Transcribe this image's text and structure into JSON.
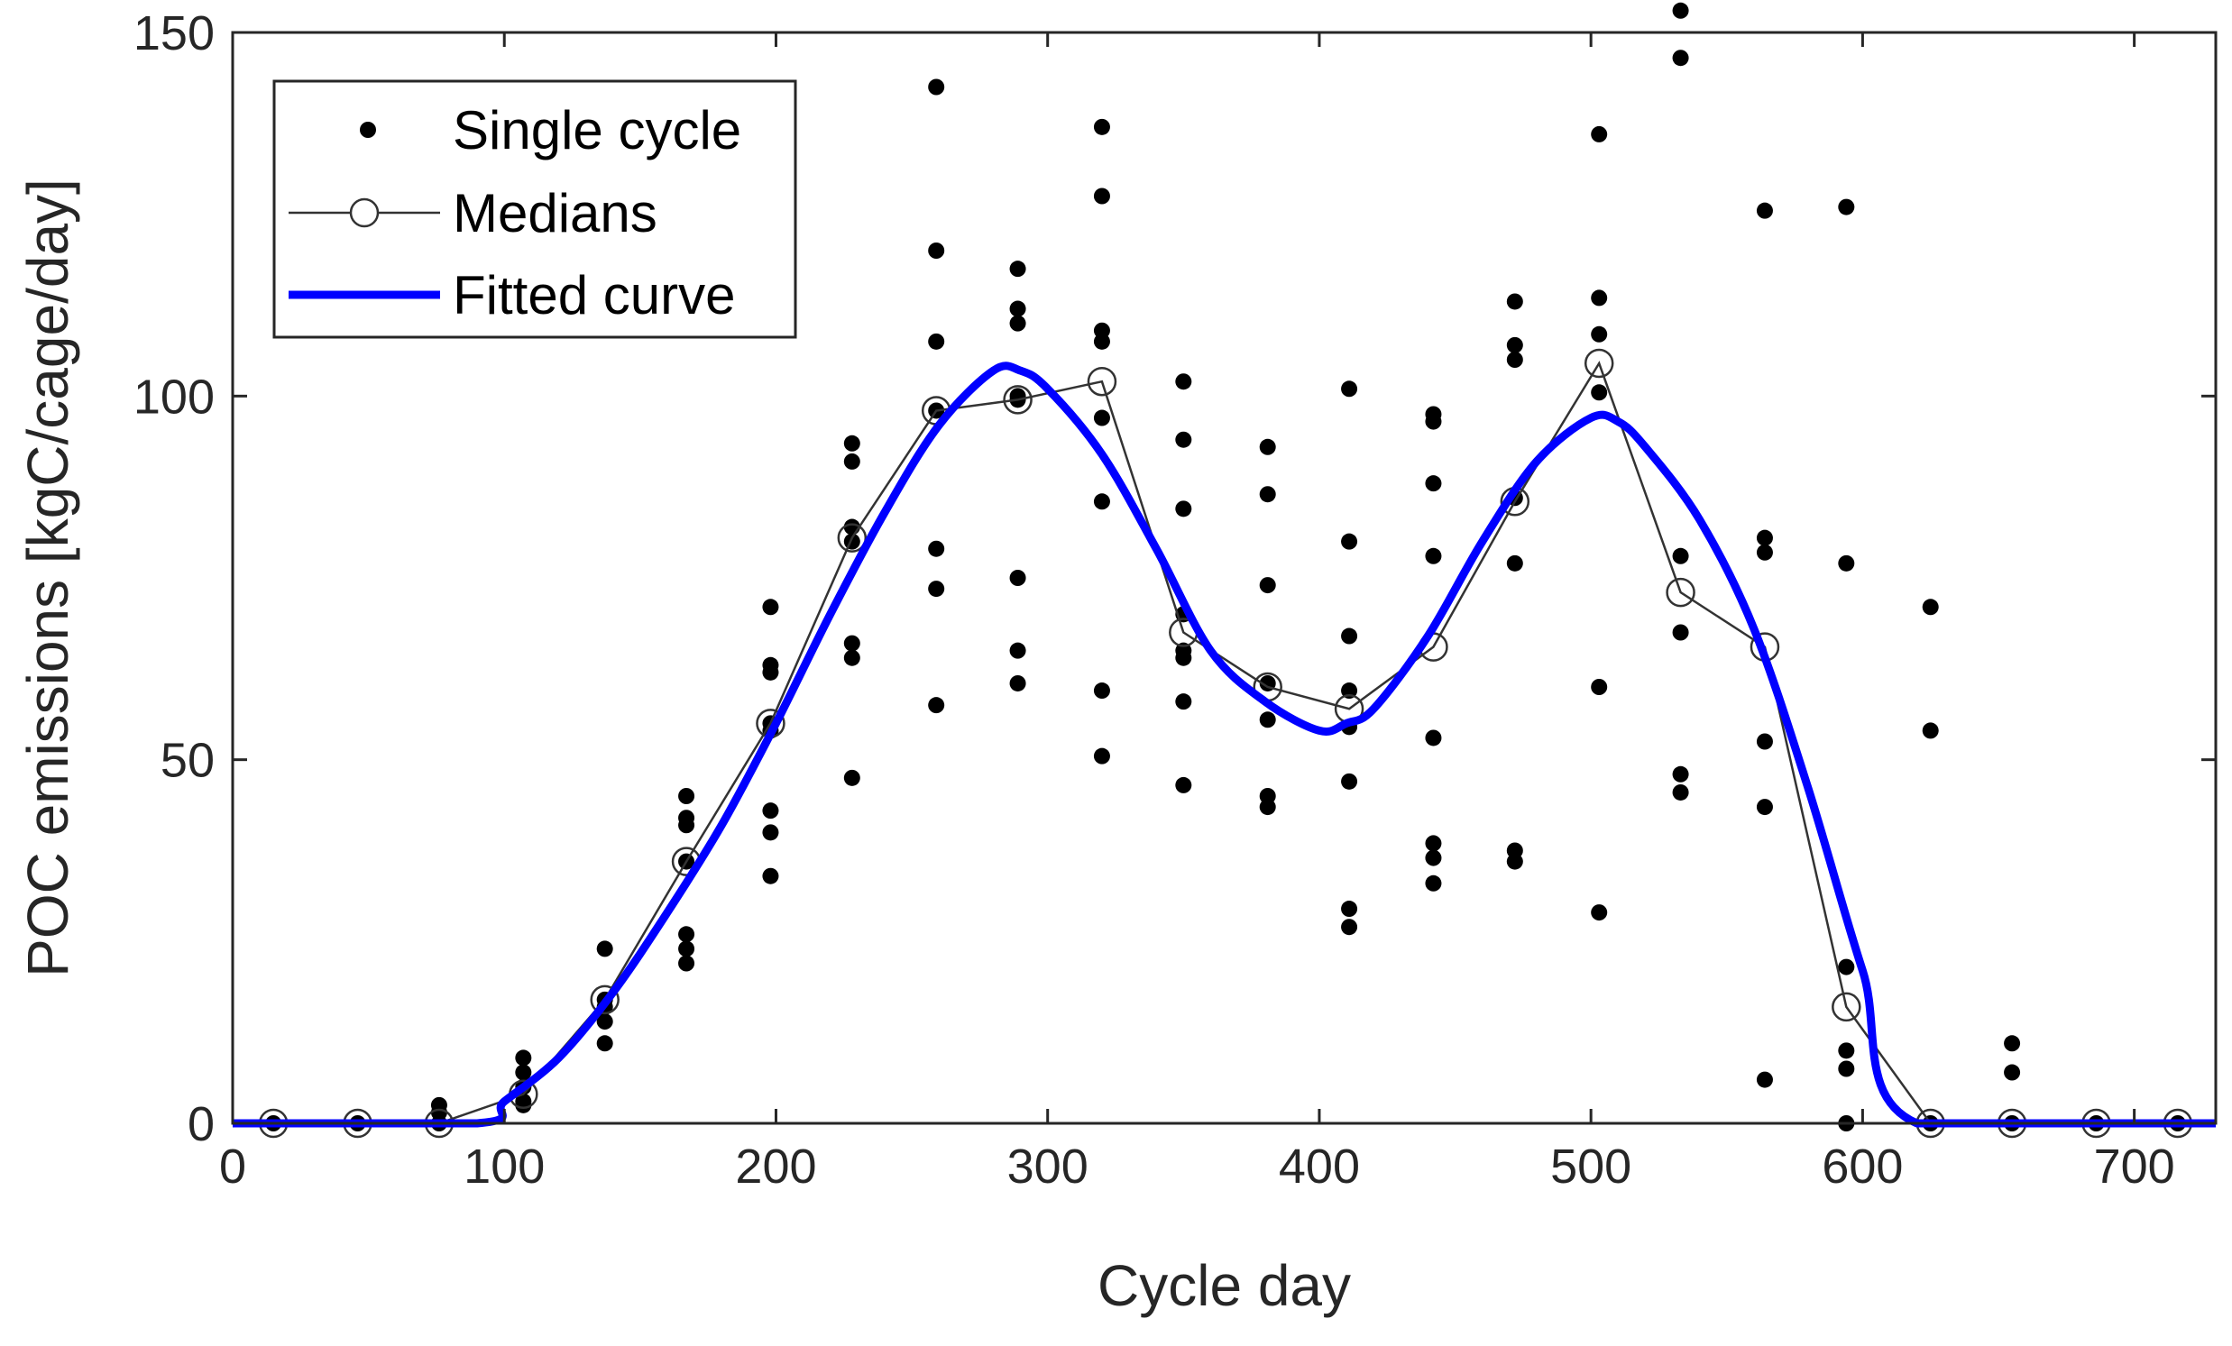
{
  "chart_data": {
    "type": "scatter",
    "xlabel": "Cycle day",
    "ylabel": "POC emissions [kgC/cage/day]",
    "xlim": [
      0,
      730
    ],
    "ylim": [
      0,
      150
    ],
    "xticks": [
      0,
      100,
      200,
      300,
      400,
      500,
      600,
      700
    ],
    "yticks": [
      0,
      50,
      100,
      150
    ],
    "grid": false,
    "legend_position": "top-left",
    "colors": {
      "single_cycle": "#000000",
      "medians": "#333333",
      "fitted_curve": "#0000FF"
    },
    "series": [
      {
        "name": "Single cycle",
        "style": "dots",
        "points": [
          [
            15,
            0
          ],
          [
            46,
            0
          ],
          [
            76,
            0
          ],
          [
            76,
            1.5
          ],
          [
            76,
            2.5
          ],
          [
            107,
            2.5
          ],
          [
            107,
            3
          ],
          [
            107,
            5
          ],
          [
            107,
            7
          ],
          [
            107,
            9
          ],
          [
            137,
            11
          ],
          [
            137,
            14
          ],
          [
            137,
            16
          ],
          [
            137,
            17
          ],
          [
            137,
            24
          ],
          [
            167,
            22
          ],
          [
            167,
            24
          ],
          [
            167,
            26
          ],
          [
            167,
            36
          ],
          [
            167,
            41
          ],
          [
            167,
            42
          ],
          [
            167,
            45
          ],
          [
            198,
            34
          ],
          [
            198,
            40
          ],
          [
            198,
            43
          ],
          [
            198,
            54
          ],
          [
            198,
            55
          ],
          [
            198,
            62
          ],
          [
            198,
            63
          ],
          [
            198,
            71
          ],
          [
            228,
            47.5
          ],
          [
            228,
            64
          ],
          [
            228,
            66
          ],
          [
            228,
            80
          ],
          [
            228,
            82
          ],
          [
            228,
            91
          ],
          [
            228,
            93.5
          ],
          [
            259,
            57.5
          ],
          [
            259,
            73.5
          ],
          [
            259,
            79
          ],
          [
            259,
            98
          ],
          [
            259,
            107.5
          ],
          [
            259,
            120
          ],
          [
            259,
            142.5
          ],
          [
            289,
            60.5
          ],
          [
            289,
            65
          ],
          [
            289,
            75
          ],
          [
            289,
            99.5
          ],
          [
            289,
            100
          ],
          [
            289,
            110
          ],
          [
            289,
            112
          ],
          [
            289,
            117.5
          ],
          [
            320,
            50.5
          ],
          [
            320,
            59.5
          ],
          [
            320,
            85.5
          ],
          [
            320,
            97
          ],
          [
            320,
            107.5
          ],
          [
            320,
            109
          ],
          [
            320,
            127.5
          ],
          [
            320,
            137
          ],
          [
            350,
            46.5
          ],
          [
            350,
            58
          ],
          [
            350,
            64
          ],
          [
            350,
            65
          ],
          [
            350,
            70
          ],
          [
            350,
            84.5
          ],
          [
            350,
            94
          ],
          [
            350,
            102
          ],
          [
            381,
            43.5
          ],
          [
            381,
            45
          ],
          [
            381,
            55.5
          ],
          [
            381,
            60.5
          ],
          [
            381,
            74
          ],
          [
            381,
            86.5
          ],
          [
            381,
            93
          ],
          [
            411,
            27
          ],
          [
            411,
            29.5
          ],
          [
            411,
            47
          ],
          [
            411,
            54.5
          ],
          [
            411,
            59.5
          ],
          [
            411,
            67
          ],
          [
            411,
            80
          ],
          [
            411,
            101
          ],
          [
            442,
            33
          ],
          [
            442,
            36.5
          ],
          [
            442,
            38.5
          ],
          [
            442,
            53
          ],
          [
            442,
            78
          ],
          [
            442,
            88
          ],
          [
            442,
            96.5
          ],
          [
            442,
            97.5
          ],
          [
            472,
            36
          ],
          [
            472,
            37.5
          ],
          [
            472,
            77
          ],
          [
            472,
            86
          ],
          [
            472,
            105
          ],
          [
            472,
            107
          ],
          [
            472,
            113
          ],
          [
            503,
            29
          ],
          [
            503,
            60
          ],
          [
            503,
            100.5
          ],
          [
            503,
            108.5
          ],
          [
            503,
            113.5
          ],
          [
            503,
            136
          ],
          [
            533,
            45.5
          ],
          [
            533,
            48
          ],
          [
            533,
            67.5
          ],
          [
            533,
            78
          ],
          [
            533,
            146.5
          ],
          [
            533,
            153
          ],
          [
            564,
            6
          ],
          [
            564,
            43.5
          ],
          [
            564,
            52.5
          ],
          [
            564,
            78.5
          ],
          [
            564,
            80.5
          ],
          [
            564,
            125.5
          ],
          [
            594,
            0
          ],
          [
            594,
            7.5
          ],
          [
            594,
            10
          ],
          [
            594,
            21.5
          ],
          [
            594,
            77
          ],
          [
            594,
            126
          ],
          [
            625,
            0
          ],
          [
            625,
            54
          ],
          [
            625,
            71
          ],
          [
            655,
            0
          ],
          [
            655,
            7
          ],
          [
            655,
            11
          ],
          [
            686,
            0
          ],
          [
            716,
            0
          ]
        ]
      },
      {
        "name": "Medians",
        "style": "line-open-circles",
        "points": [
          [
            15,
            0
          ],
          [
            46,
            0
          ],
          [
            76,
            0
          ],
          [
            107,
            4
          ],
          [
            137,
            17
          ],
          [
            167,
            36
          ],
          [
            198,
            55
          ],
          [
            228,
            80.5
          ],
          [
            259,
            98
          ],
          [
            289,
            99.5
          ],
          [
            320,
            102
          ],
          [
            350,
            67.5
          ],
          [
            381,
            60
          ],
          [
            411,
            57
          ],
          [
            442,
            65.5
          ],
          [
            472,
            85.5
          ],
          [
            503,
            104.5
          ],
          [
            533,
            73
          ],
          [
            564,
            65.5
          ],
          [
            594,
            16
          ],
          [
            625,
            0
          ],
          [
            655,
            0
          ],
          [
            686,
            0
          ],
          [
            716,
            0
          ]
        ]
      },
      {
        "name": "Fitted curve",
        "style": "thick-line",
        "points": [
          [
            0,
            0
          ],
          [
            90,
            0
          ],
          [
            100,
            3
          ],
          [
            120,
            9
          ],
          [
            140,
            18
          ],
          [
            160,
            29
          ],
          [
            180,
            41
          ],
          [
            200,
            55
          ],
          [
            220,
            70
          ],
          [
            240,
            84
          ],
          [
            260,
            96
          ],
          [
            280,
            103.5
          ],
          [
            290,
            103.5
          ],
          [
            300,
            101
          ],
          [
            320,
            92
          ],
          [
            340,
            79
          ],
          [
            360,
            65
          ],
          [
            380,
            58
          ],
          [
            400,
            54
          ],
          [
            410,
            55
          ],
          [
            420,
            57
          ],
          [
            440,
            67
          ],
          [
            460,
            80
          ],
          [
            480,
            91
          ],
          [
            500,
            97
          ],
          [
            510,
            96.5
          ],
          [
            520,
            93
          ],
          [
            540,
            83
          ],
          [
            560,
            68
          ],
          [
            580,
            46
          ],
          [
            600,
            21
          ],
          [
            620,
            0
          ],
          [
            730,
            0
          ]
        ]
      }
    ]
  }
}
